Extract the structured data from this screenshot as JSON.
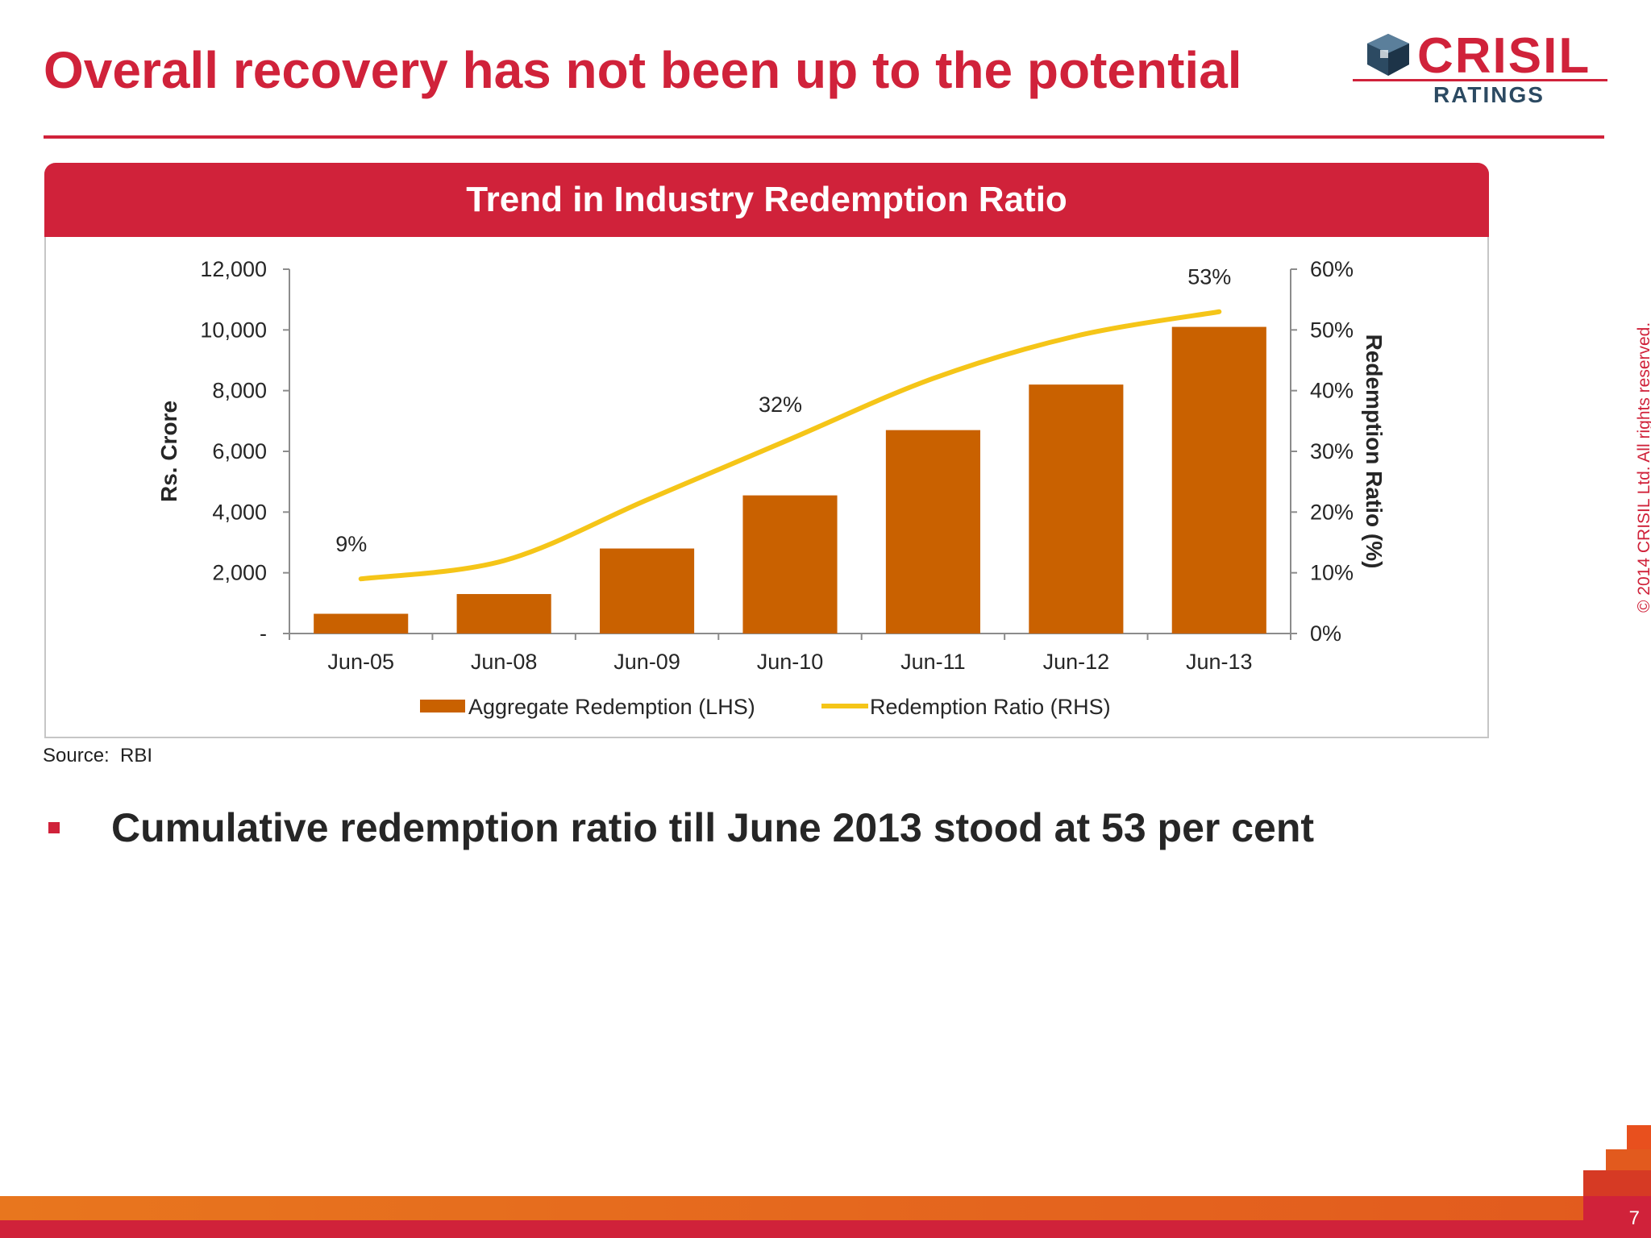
{
  "slide": {
    "title": "Overall recovery has not been up to the potential",
    "source": "Source:  RBI",
    "bullet": "Cumulative redemption ratio till June 2013 stood at 53 per cent",
    "copyright": "© 2014 CRISIL Ltd. All rights reserved.",
    "page_number": "7"
  },
  "logo": {
    "brand": "CRISIL",
    "sub": "RATINGS"
  },
  "colors": {
    "brand_red": "#d0223a",
    "bar": "#c96100",
    "line": "#f5c518",
    "footer_orange": "#e8761e"
  },
  "chart_data": {
    "type": "bar",
    "title": "Trend in Industry Redemption Ratio",
    "categories": [
      "Jun-05",
      "Jun-08",
      "Jun-09",
      "Jun-10",
      "Jun-11",
      "Jun-12",
      "Jun-13"
    ],
    "ylabel": "Rs. Crore",
    "y2label": "Redemption Ratio (%)",
    "ylim": [
      0,
      12000
    ],
    "y2lim": [
      0,
      60
    ],
    "yticks": [
      "-",
      "2,000",
      "4,000",
      "6,000",
      "8,000",
      "10,000",
      "12,000"
    ],
    "y2ticks": [
      "0%",
      "10%",
      "20%",
      "30%",
      "40%",
      "50%",
      "60%"
    ],
    "series": [
      {
        "name": "Aggregate Redemption (LHS)",
        "type": "bar",
        "axis": "left",
        "values": [
          650,
          1300,
          2800,
          4550,
          6700,
          8200,
          10100
        ]
      },
      {
        "name": "Redemption Ratio (RHS)",
        "type": "line",
        "axis": "right",
        "values": [
          9,
          12,
          22,
          32,
          42,
          49,
          53
        ]
      }
    ],
    "data_labels": [
      {
        "category": "Jun-05",
        "text": "9%"
      },
      {
        "category": "Jun-10",
        "text": "32%"
      },
      {
        "category": "Jun-13",
        "text": "53%"
      }
    ],
    "legend_position": "bottom",
    "grid": false
  }
}
